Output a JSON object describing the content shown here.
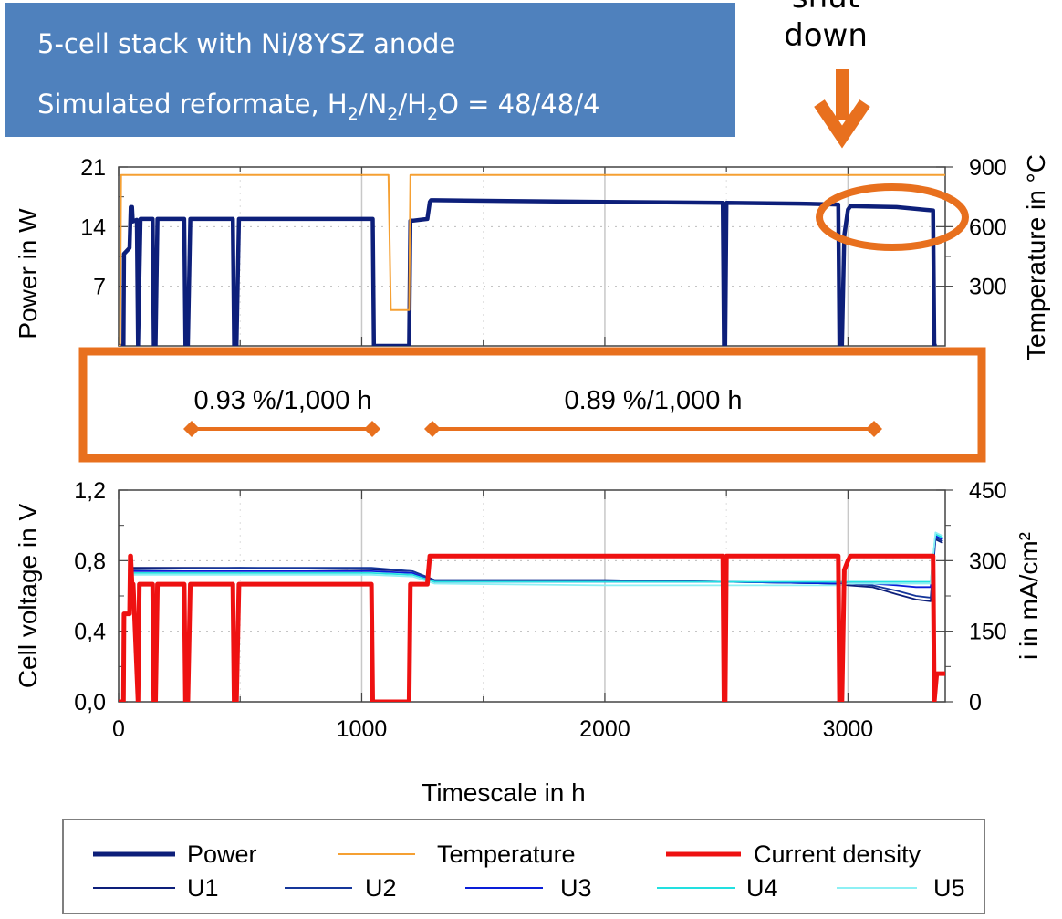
{
  "info_box": {
    "line1": "5-cell stack with Ni/8YSZ anode",
    "line2_prefix": "Simulated reformate, H",
    "line2_s1": "2",
    "line2_m1": "/N",
    "line2_s2": "2",
    "line2_m2": "/H",
    "line2_s3": "2",
    "line2_suffix": "O = 48/48/4"
  },
  "annotation": {
    "shutdown_line1": "shut",
    "shutdown_line2": "down"
  },
  "degradation": {
    "rate1": "0.93 %/1,000 h",
    "rate2": "0.89 %/1,000 h"
  },
  "colors": {
    "power": "#0d1f7a",
    "temperature": "#f5a033",
    "current": "#ee1111",
    "u1": "#0d1f7a",
    "u2": "#15369a",
    "u3": "#0a1ed8",
    "u4": "#22e0e0",
    "u5": "#8df0f4",
    "accent": "#e8701e",
    "infobox": "#4f81bd"
  },
  "chart_data": [
    {
      "type": "line",
      "ylabel": "Power in W",
      "y2label": "Temperature in °C",
      "xlim": [
        0,
        3400
      ],
      "ylim": [
        0,
        21
      ],
      "y2lim": [
        0,
        900
      ],
      "yticks": [
        "21",
        "14",
        "7"
      ],
      "y2ticks": [
        "900",
        "600",
        "300"
      ],
      "series": [
        {
          "name": "Power",
          "axis": "left",
          "x": [
            0,
            20,
            22,
            45,
            50,
            55,
            58,
            75,
            80,
            90,
            140,
            145,
            152,
            160,
            270,
            275,
            285,
            295,
            470,
            475,
            485,
            495,
            1040,
            1045,
            1050,
            1055,
            1195,
            1200,
            1205,
            1210,
            1270,
            1280,
            1285,
            1300,
            1600,
            2000,
            2485,
            2490,
            2495,
            2500,
            2800,
            2960,
            2965,
            2975,
            2985,
            3000,
            3010,
            3200,
            3350,
            3355,
            3365
          ],
          "y": [
            0,
            0,
            10.8,
            11.5,
            16.3,
            16.3,
            14.6,
            14.8,
            0,
            14.9,
            14.9,
            0,
            0,
            14.9,
            14.9,
            0,
            0,
            14.9,
            14.9,
            0,
            0,
            14.9,
            14.9,
            14.9,
            0,
            0,
            0,
            14.7,
            14.7,
            14.7,
            14.9,
            16.9,
            17.1,
            17.1,
            17.0,
            16.9,
            16.8,
            0,
            0,
            16.8,
            16.7,
            16.6,
            0,
            0,
            13.0,
            16.0,
            16.4,
            16.3,
            15.9,
            0,
            0
          ]
        },
        {
          "name": "Temperature",
          "axis": "right",
          "x": [
            0,
            6,
            10,
            20,
            1110,
            1120,
            1180,
            1195,
            1200,
            3400
          ],
          "y": [
            0,
            0,
            860,
            860,
            860,
            180,
            180,
            180,
            860,
            860
          ]
        }
      ]
    },
    {
      "type": "line",
      "xlabel": "Timescale in h",
      "ylabel": "Cell voltage in V",
      "y2label": "i in mA/cm²",
      "xlim": [
        0,
        3400
      ],
      "ylim": [
        0,
        1.2
      ],
      "y2lim": [
        0,
        450
      ],
      "xticks": [
        "0",
        "1000",
        "2000",
        "3000"
      ],
      "yticks": [
        "1,2",
        "0,8",
        "0,4",
        "0,0"
      ],
      "y2ticks": [
        "450",
        "300",
        "150",
        "0"
      ],
      "series": [
        {
          "name": "Current density",
          "axis": "right",
          "x": [
            0,
            20,
            22,
            45,
            48,
            50,
            55,
            60,
            80,
            85,
            140,
            145,
            152,
            160,
            270,
            275,
            285,
            295,
            470,
            475,
            485,
            495,
            1040,
            1045,
            1055,
            1195,
            1200,
            1205,
            1270,
            1280,
            1300,
            2485,
            2490,
            2495,
            2500,
            2960,
            2965,
            2975,
            2985,
            3000,
            3010,
            3350,
            3355,
            3365,
            3400
          ],
          "y": [
            0,
            0,
            187,
            187,
            310,
            310,
            250,
            250,
            0,
            250,
            250,
            0,
            0,
            250,
            250,
            0,
            0,
            250,
            250,
            0,
            0,
            250,
            250,
            0,
            0,
            0,
            250,
            250,
            250,
            310,
            310,
            310,
            0,
            0,
            310,
            310,
            0,
            0,
            280,
            300,
            310,
            310,
            0,
            60,
            60
          ]
        },
        {
          "name": "U1",
          "axis": "left",
          "x": [
            40,
            60,
            500,
            1040,
            1210,
            1300,
            2000,
            2500,
            2960,
            3000,
            3100,
            3200,
            3280,
            3340,
            3360,
            3390
          ],
          "y": [
            0.74,
            0.76,
            0.76,
            0.75,
            0.74,
            0.69,
            0.69,
            0.68,
            0.67,
            0.66,
            0.65,
            0.61,
            0.58,
            0.57,
            0.92,
            0.9
          ]
        },
        {
          "name": "U2",
          "axis": "left",
          "x": [
            40,
            60,
            500,
            1040,
            1210,
            1300,
            2000,
            2500,
            2960,
            3000,
            3100,
            3200,
            3280,
            3340,
            3360,
            3390
          ],
          "y": [
            0.74,
            0.75,
            0.76,
            0.76,
            0.74,
            0.69,
            0.69,
            0.68,
            0.67,
            0.67,
            0.66,
            0.63,
            0.6,
            0.59,
            0.93,
            0.91
          ]
        },
        {
          "name": "U3",
          "axis": "left",
          "x": [
            40,
            60,
            500,
            1040,
            1210,
            1300,
            2000,
            2500,
            2960,
            3000,
            3100,
            3200,
            3280,
            3340,
            3360,
            3390
          ],
          "y": [
            0.73,
            0.74,
            0.74,
            0.74,
            0.73,
            0.68,
            0.68,
            0.68,
            0.67,
            0.67,
            0.67,
            0.66,
            0.65,
            0.65,
            0.94,
            0.92
          ]
        },
        {
          "name": "U4",
          "axis": "left",
          "x": [
            40,
            60,
            500,
            1040,
            1210,
            1300,
            2000,
            2500,
            2960,
            3000,
            3100,
            3200,
            3280,
            3340,
            3360,
            3390
          ],
          "y": [
            0.72,
            0.73,
            0.73,
            0.73,
            0.72,
            0.68,
            0.68,
            0.68,
            0.68,
            0.68,
            0.68,
            0.68,
            0.68,
            0.68,
            0.95,
            0.93
          ]
        },
        {
          "name": "U5",
          "axis": "left",
          "x": [
            40,
            60,
            500,
            1040,
            1210,
            1300,
            2000,
            2500,
            2960,
            3000,
            3100,
            3200,
            3280,
            3340,
            3360,
            3390
          ],
          "y": [
            0.71,
            0.72,
            0.72,
            0.72,
            0.71,
            0.67,
            0.66,
            0.66,
            0.66,
            0.67,
            0.67,
            0.67,
            0.67,
            0.67,
            0.96,
            0.94
          ]
        }
      ]
    }
  ],
  "legend": {
    "row1": [
      "Power",
      "Temperature",
      "Current density"
    ],
    "row2": [
      "U1",
      "U2",
      "U3",
      "U4",
      "U5"
    ]
  }
}
